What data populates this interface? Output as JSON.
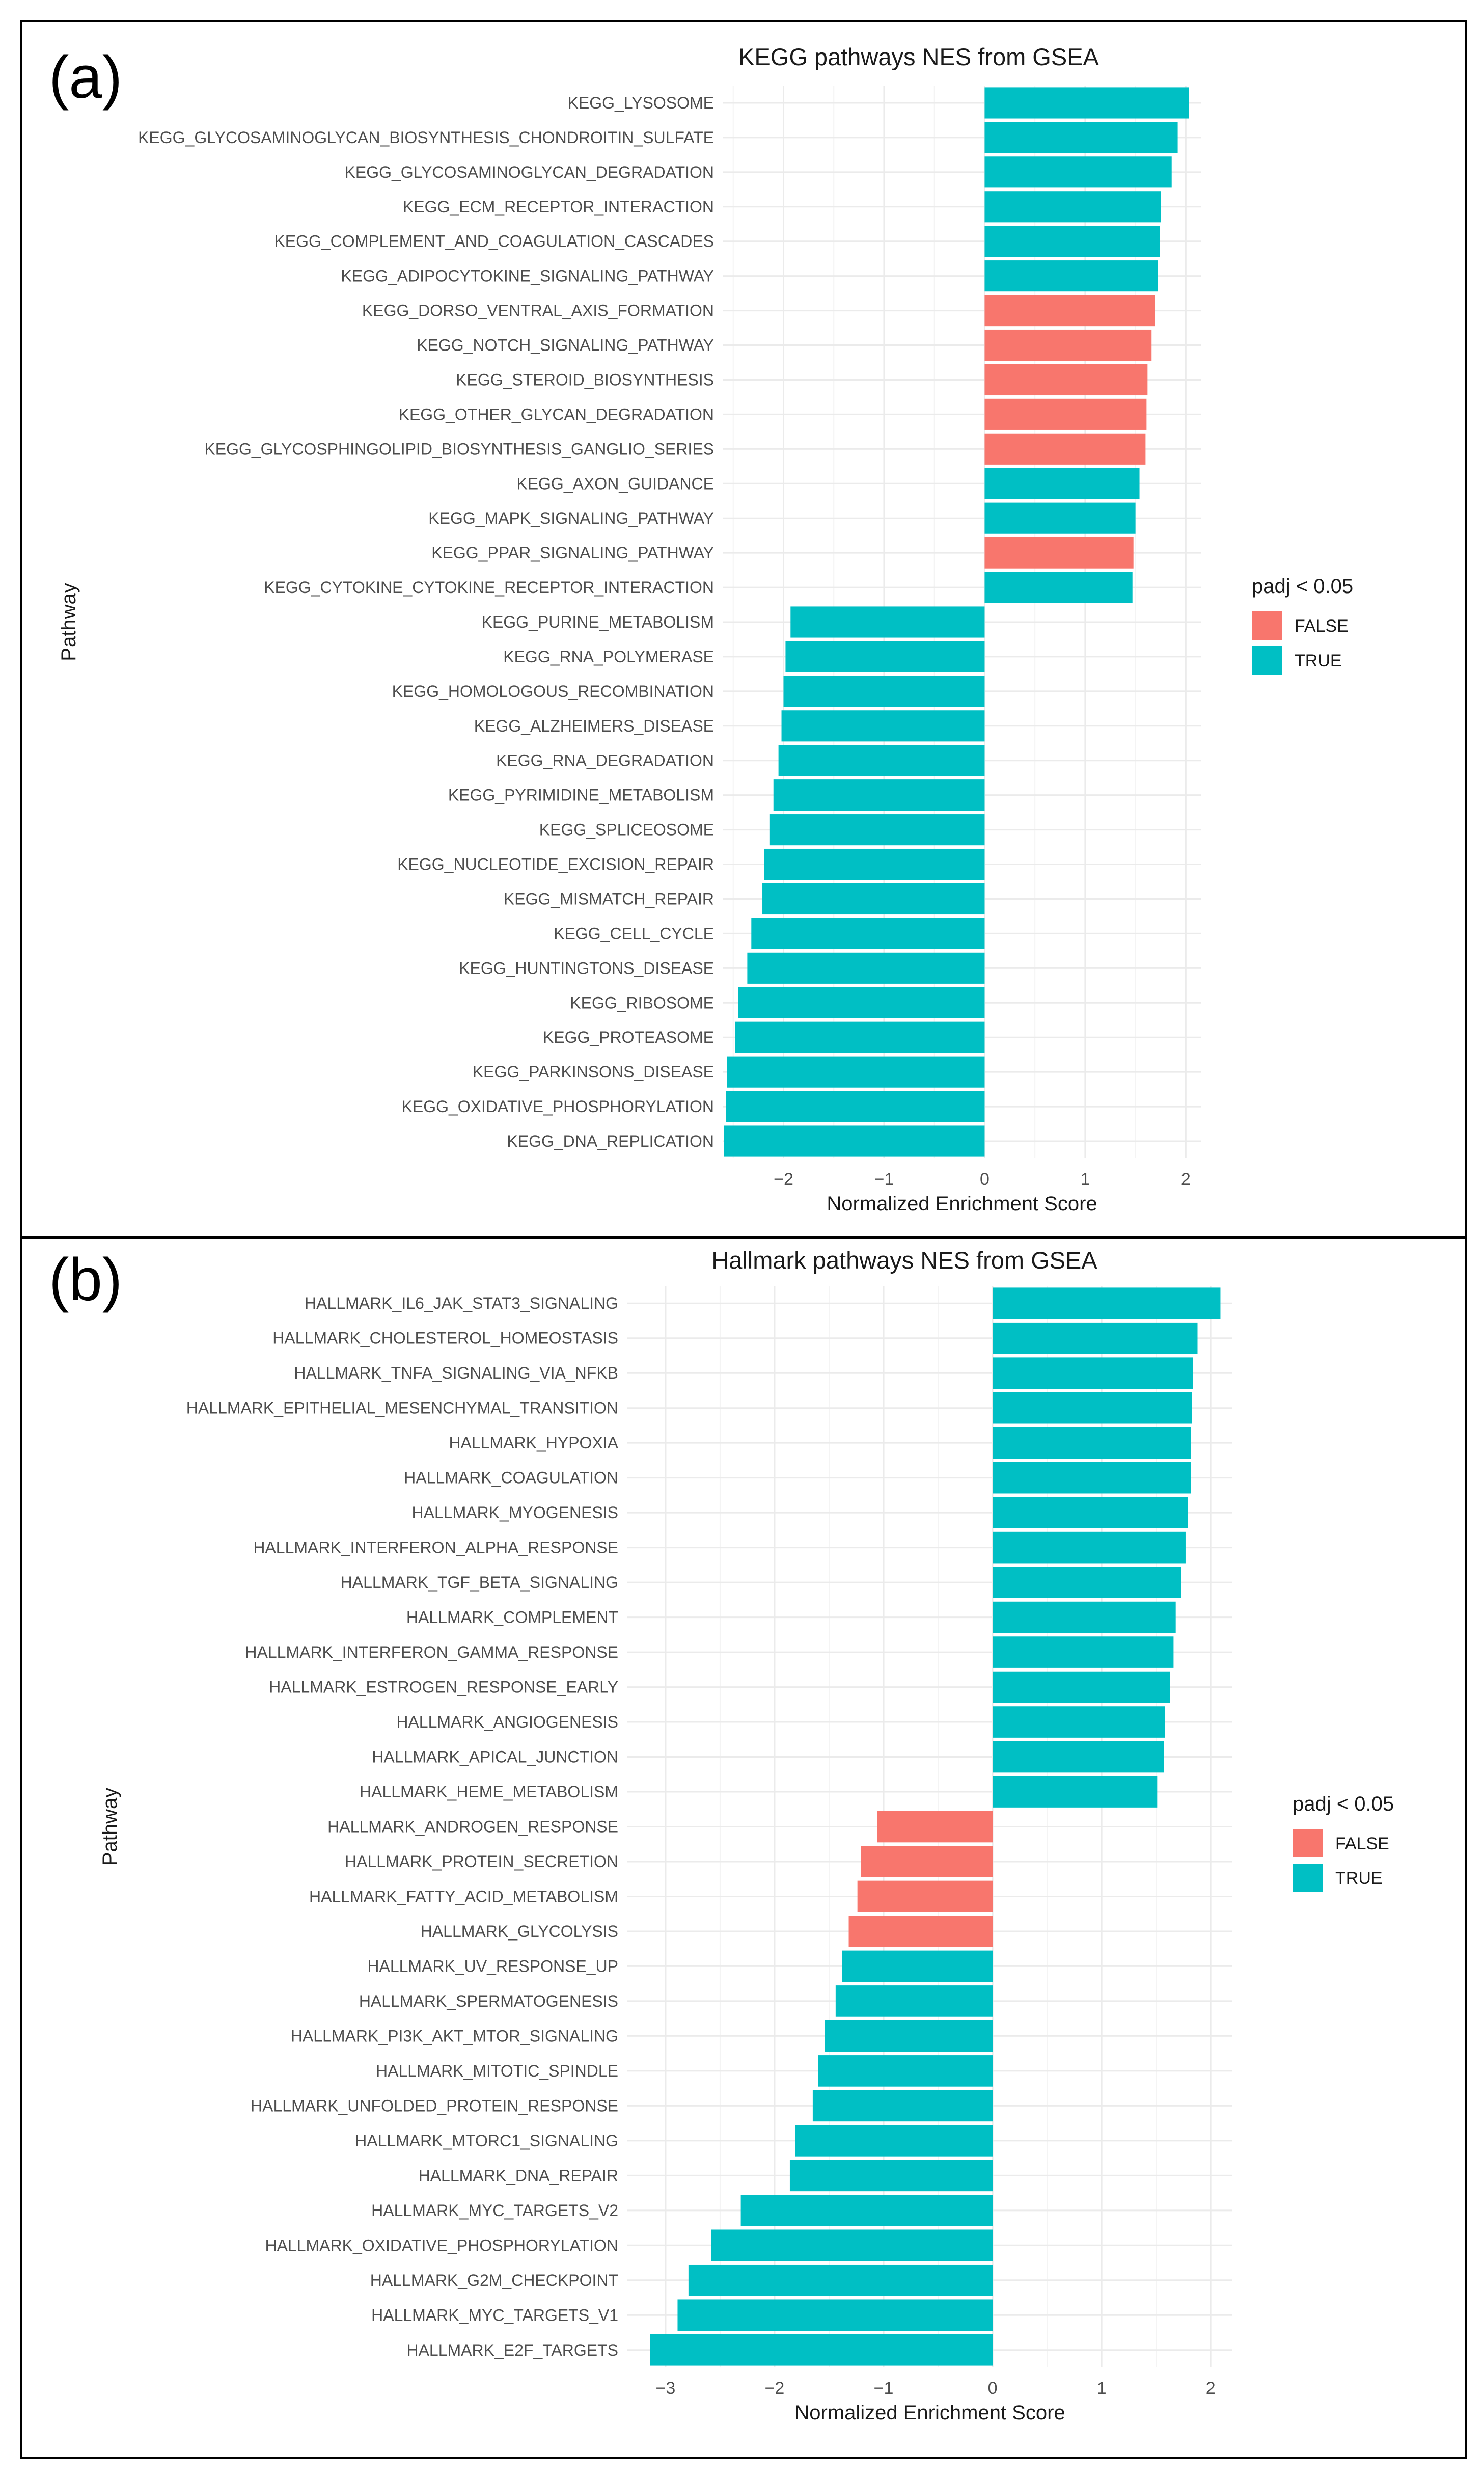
{
  "chart_data": [
    {
      "type": "bar",
      "orientation": "horizontal",
      "panel_label": "(a)",
      "title": "KEGG pathways NES from GSEA",
      "xlabel": "Normalized Enrichment Score",
      "ylabel": "Pathway",
      "xlim": [
        -2.6,
        2.15
      ],
      "xticks": [
        -2,
        -1,
        0,
        1,
        2
      ],
      "xtick_labels": [
        "−2",
        "−1",
        "0",
        "1",
        "2"
      ],
      "grid": true,
      "legend": {
        "title": "padj < 0.05",
        "position": "right",
        "entries": [
          {
            "label": "FALSE",
            "color": "#F8766D"
          },
          {
            "label": "TRUE",
            "color": "#00BFC4"
          }
        ]
      },
      "categories": [
        "KEGG_LYSOSOME",
        "KEGG_GLYCOSAMINOGLYCAN_BIOSYNTHESIS_CHONDROITIN_SULFATE",
        "KEGG_GLYCOSAMINOGLYCAN_DEGRADATION",
        "KEGG_ECM_RECEPTOR_INTERACTION",
        "KEGG_COMPLEMENT_AND_COAGULATION_CASCADES",
        "KEGG_ADIPOCYTOKINE_SIGNALING_PATHWAY",
        "KEGG_DORSO_VENTRAL_AXIS_FORMATION",
        "KEGG_NOTCH_SIGNALING_PATHWAY",
        "KEGG_STEROID_BIOSYNTHESIS",
        "KEGG_OTHER_GLYCAN_DEGRADATION",
        "KEGG_GLYCOSPHINGOLIPID_BIOSYNTHESIS_GANGLIO_SERIES",
        "KEGG_AXON_GUIDANCE",
        "KEGG_MAPK_SIGNALING_PATHWAY",
        "KEGG_PPAR_SIGNALING_PATHWAY",
        "KEGG_CYTOKINE_CYTOKINE_RECEPTOR_INTERACTION",
        "KEGG_PURINE_METABOLISM",
        "KEGG_RNA_POLYMERASE",
        "KEGG_HOMOLOGOUS_RECOMBINATION",
        "KEGG_ALZHEIMERS_DISEASE",
        "KEGG_RNA_DEGRADATION",
        "KEGG_PYRIMIDINE_METABOLISM",
        "KEGG_SPLICEOSOME",
        "KEGG_NUCLEOTIDE_EXCISION_REPAIR",
        "KEGG_MISMATCH_REPAIR",
        "KEGG_CELL_CYCLE",
        "KEGG_HUNTINGTONS_DISEASE",
        "KEGG_RIBOSOME",
        "KEGG_PROTEASOME",
        "KEGG_PARKINSONS_DISEASE",
        "KEGG_OXIDATIVE_PHOSPHORYLATION",
        "KEGG_DNA_REPLICATION"
      ],
      "values": [
        2.03,
        1.92,
        1.86,
        1.75,
        1.74,
        1.72,
        1.69,
        1.66,
        1.62,
        1.61,
        1.6,
        1.54,
        1.5,
        1.48,
        1.47,
        -1.93,
        -1.98,
        -2.0,
        -2.02,
        -2.05,
        -2.1,
        -2.14,
        -2.19,
        -2.21,
        -2.32,
        -2.36,
        -2.45,
        -2.48,
        -2.56,
        -2.57,
        -2.59
      ],
      "padj_significant": [
        true,
        true,
        true,
        true,
        true,
        true,
        false,
        false,
        false,
        false,
        false,
        true,
        true,
        false,
        true,
        true,
        true,
        true,
        true,
        true,
        true,
        true,
        true,
        true,
        true,
        true,
        true,
        true,
        true,
        true,
        true
      ]
    },
    {
      "type": "bar",
      "orientation": "horizontal",
      "panel_label": "(b)",
      "title": "Hallmark pathways NES from GSEA",
      "xlabel": "Normalized Enrichment Score",
      "ylabel": "Pathway",
      "xlim": [
        -3.35,
        2.2
      ],
      "xticks": [
        -3,
        -2,
        -1,
        0,
        1,
        2
      ],
      "xtick_labels": [
        "−3",
        "−2",
        "−1",
        "0",
        "1",
        "2"
      ],
      "grid": true,
      "legend": {
        "title": "padj < 0.05",
        "position": "right",
        "entries": [
          {
            "label": "FALSE",
            "color": "#F8766D"
          },
          {
            "label": "TRUE",
            "color": "#00BFC4"
          }
        ]
      },
      "categories": [
        "HALLMARK_IL6_JAK_STAT3_SIGNALING",
        "HALLMARK_CHOLESTEROL_HOMEOSTASIS",
        "HALLMARK_TNFA_SIGNALING_VIA_NFKB",
        "HALLMARK_EPITHELIAL_MESENCHYMAL_TRANSITION",
        "HALLMARK_HYPOXIA",
        "HALLMARK_COAGULATION",
        "HALLMARK_MYOGENESIS",
        "HALLMARK_INTERFERON_ALPHA_RESPONSE",
        "HALLMARK_TGF_BETA_SIGNALING",
        "HALLMARK_COMPLEMENT",
        "HALLMARK_INTERFERON_GAMMA_RESPONSE",
        "HALLMARK_ESTROGEN_RESPONSE_EARLY",
        "HALLMARK_ANGIOGENESIS",
        "HALLMARK_APICAL_JUNCTION",
        "HALLMARK_HEME_METABOLISM",
        "HALLMARK_ANDROGEN_RESPONSE",
        "HALLMARK_PROTEIN_SECRETION",
        "HALLMARK_FATTY_ACID_METABOLISM",
        "HALLMARK_GLYCOLYSIS",
        "HALLMARK_UV_RESPONSE_UP",
        "HALLMARK_SPERMATOGENESIS",
        "HALLMARK_PI3K_AKT_MTOR_SIGNALING",
        "HALLMARK_MITOTIC_SPINDLE",
        "HALLMARK_UNFOLDED_PROTEIN_RESPONSE",
        "HALLMARK_MTORC1_SIGNALING",
        "HALLMARK_DNA_REPAIR",
        "HALLMARK_MYC_TARGETS_V2",
        "HALLMARK_OXIDATIVE_PHOSPHORYLATION",
        "HALLMARK_G2M_CHECKPOINT",
        "HALLMARK_MYC_TARGETS_V1",
        "HALLMARK_E2F_TARGETS"
      ],
      "values": [
        2.09,
        1.88,
        1.84,
        1.83,
        1.82,
        1.82,
        1.79,
        1.77,
        1.73,
        1.68,
        1.66,
        1.63,
        1.58,
        1.57,
        1.51,
        -1.06,
        -1.21,
        -1.24,
        -1.32,
        -1.38,
        -1.44,
        -1.54,
        -1.6,
        -1.65,
        -1.81,
        -1.86,
        -2.31,
        -2.58,
        -2.79,
        -2.89,
        -3.14
      ],
      "padj_significant": [
        true,
        true,
        true,
        true,
        true,
        true,
        true,
        true,
        true,
        true,
        true,
        true,
        true,
        true,
        true,
        false,
        false,
        false,
        false,
        true,
        true,
        true,
        true,
        true,
        true,
        true,
        true,
        true,
        true,
        true,
        true
      ]
    }
  ]
}
